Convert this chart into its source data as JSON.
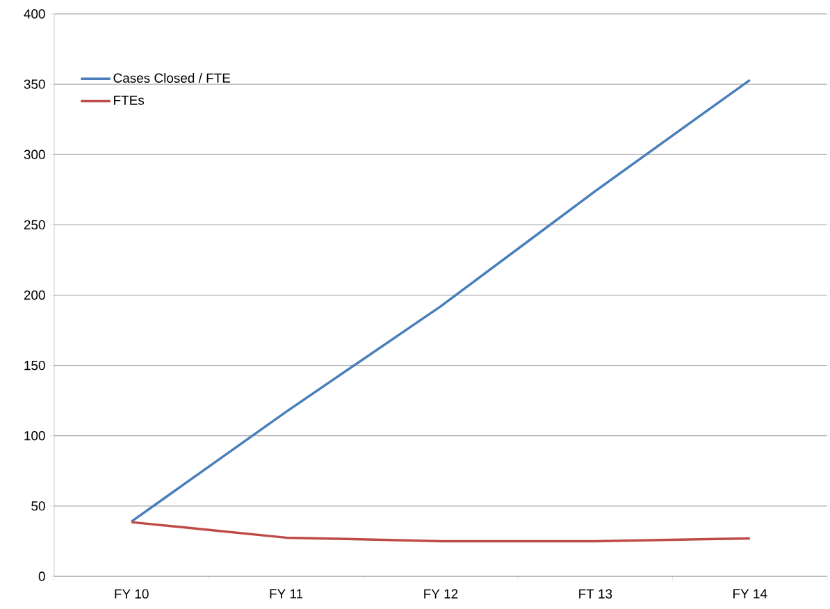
{
  "chart_data": {
    "type": "line",
    "categories": [
      "FY 10",
      "FY 11",
      "FY 12",
      "FT 13",
      "FY 14"
    ],
    "series": [
      {
        "name": "Cases Closed / FTE",
        "color": "#4a7ebb",
        "values": [
          39,
          117,
          192,
          274,
          353
        ]
      },
      {
        "name": "FTEs",
        "color": "#be4b48",
        "values": [
          38.5,
          27.5,
          25,
          25,
          27
        ]
      }
    ],
    "ylim": [
      0,
      400
    ],
    "yticks": [
      0,
      50,
      100,
      150,
      200,
      250,
      300,
      350,
      400
    ],
    "grid": "y",
    "legend": "top left"
  }
}
